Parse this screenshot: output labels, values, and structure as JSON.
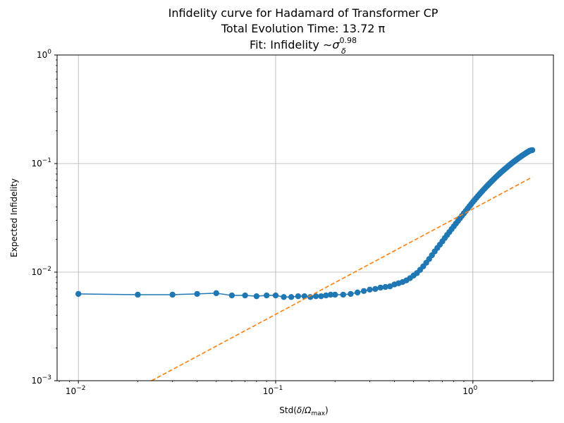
{
  "chart_data": {
    "type": "line",
    "title_lines": [
      "Infidelity curve for Hadamard of Transformer CP",
      "Total Evolution Time: 13.72 π"
    ],
    "fit_label": {
      "prefix": "Fit: Infidelity ",
      "tilde": "∼",
      "symbol": "σ",
      "exponent": "0.98",
      "subscript": "δ"
    },
    "xlabel": {
      "prefix": "Std(",
      "delta": "δ",
      "slash": "/",
      "omega": "Ω",
      "omega_sub": "max",
      "suffix": ")"
    },
    "ylabel": "Expected Infidelity",
    "x_scale": "log",
    "y_scale": "log",
    "xlim": [
      0.0078,
      2.56
    ],
    "ylim": [
      0.001,
      1
    ],
    "grid": true,
    "x_ticks": [
      {
        "value": 0.01,
        "base": "10",
        "exp": "−2"
      },
      {
        "value": 0.1,
        "base": "10",
        "exp": "−1"
      },
      {
        "value": 1,
        "base": "10",
        "exp": "0"
      }
    ],
    "y_ticks": [
      {
        "value": 0.001,
        "base": "10",
        "exp": "−3"
      },
      {
        "value": 0.01,
        "base": "10",
        "exp": "−2"
      },
      {
        "value": 0.1,
        "base": "10",
        "exp": "−1"
      },
      {
        "value": 1,
        "base": "10",
        "exp": "0"
      }
    ],
    "series": [
      {
        "kind": "measured",
        "color": "#1f77b4",
        "marker": "circle",
        "x": [
          0.01,
          0.02,
          0.03,
          0.04,
          0.05,
          0.06,
          0.07,
          0.08,
          0.09,
          0.1,
          0.11,
          0.12,
          0.13,
          0.14,
          0.15,
          0.16,
          0.17,
          0.18,
          0.19,
          0.2,
          0.22,
          0.24,
          0.26,
          0.28,
          0.3,
          0.32,
          0.34,
          0.36,
          0.38,
          0.4,
          0.42,
          0.44,
          0.46,
          0.48,
          0.5,
          0.52,
          0.54,
          0.56,
          0.58,
          0.6,
          0.62,
          0.64,
          0.66,
          0.68,
          0.7,
          0.72,
          0.74,
          0.76,
          0.78,
          0.8,
          0.82,
          0.84,
          0.86,
          0.88,
          0.9,
          0.92,
          0.94,
          0.96,
          0.98,
          1.0,
          1.02,
          1.04,
          1.06,
          1.08,
          1.1,
          1.12,
          1.14,
          1.16,
          1.18,
          1.2,
          1.22,
          1.24,
          1.26,
          1.28,
          1.3,
          1.32,
          1.34,
          1.36,
          1.38,
          1.4,
          1.42,
          1.44,
          1.46,
          1.48,
          1.5,
          1.52,
          1.54,
          1.56,
          1.58,
          1.6,
          1.62,
          1.64,
          1.66,
          1.68,
          1.7,
          1.72,
          1.74,
          1.76,
          1.78,
          1.8,
          1.82,
          1.84,
          1.86,
          1.88,
          1.9,
          1.92,
          1.94,
          1.96,
          1.98,
          2.0
        ],
        "y": [
          0.0063,
          0.0062,
          0.0062,
          0.0063,
          0.0064,
          0.0061,
          0.0061,
          0.006,
          0.0061,
          0.0061,
          0.0059,
          0.0059,
          0.006,
          0.006,
          0.0059,
          0.006,
          0.006,
          0.0061,
          0.0062,
          0.0062,
          0.0062,
          0.0063,
          0.0065,
          0.0067,
          0.0069,
          0.007,
          0.0072,
          0.0073,
          0.0074,
          0.0077,
          0.0079,
          0.0081,
          0.0084,
          0.0088,
          0.0093,
          0.0098,
          0.0105,
          0.0113,
          0.0122,
          0.0132,
          0.0143,
          0.0155,
          0.0167,
          0.0179,
          0.0192,
          0.0206,
          0.022,
          0.0234,
          0.0249,
          0.0264,
          0.028,
          0.0296,
          0.0313,
          0.033,
          0.0348,
          0.0366,
          0.0385,
          0.0404,
          0.0423,
          0.0443,
          0.0462,
          0.0482,
          0.0502,
          0.0522,
          0.0542,
          0.0562,
          0.0582,
          0.0602,
          0.0622,
          0.0642,
          0.0662,
          0.0682,
          0.0702,
          0.0722,
          0.0742,
          0.0762,
          0.0782,
          0.0802,
          0.0822,
          0.0841,
          0.086,
          0.0879,
          0.0898,
          0.0917,
          0.0936,
          0.0955,
          0.0974,
          0.0993,
          0.1011,
          0.1029,
          0.1047,
          0.1065,
          0.1083,
          0.1101,
          0.1118,
          0.1135,
          0.1152,
          0.1169,
          0.1186,
          0.1202,
          0.1218,
          0.1234,
          0.125,
          0.1266,
          0.1281,
          0.1296,
          0.1311,
          0.1318,
          0.1324,
          0.133
        ]
      },
      {
        "kind": "fit",
        "color": "#ff7f0e",
        "dashed": true,
        "x": [
          0.0235,
          2.0
        ],
        "y": [
          0.001,
          0.075
        ]
      }
    ]
  }
}
